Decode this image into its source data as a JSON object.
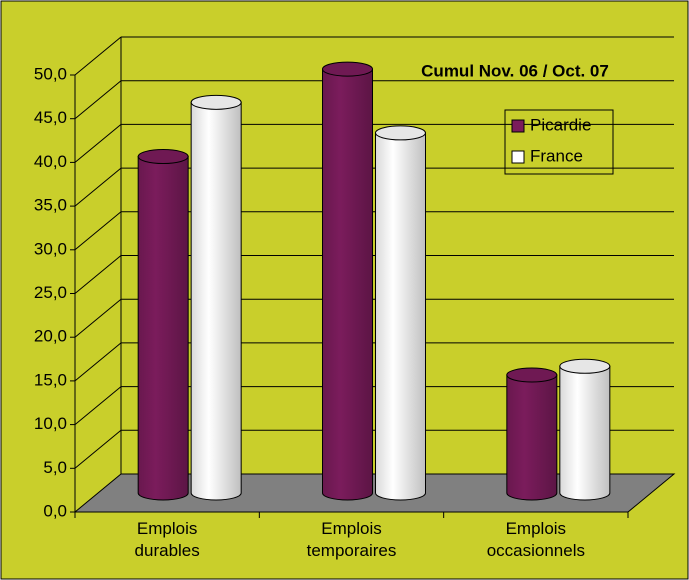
{
  "chart_data": {
    "type": "bar3d",
    "title": "Cumul Nov. 06 / Oct. 07",
    "categories": [
      "Emplois durables",
      "Emplois temporaires",
      "Emplois occasionnels"
    ],
    "series": [
      {
        "name": "Picardie",
        "color": "#7b1c5c",
        "values": [
          38.5,
          48.5,
          13.5
        ]
      },
      {
        "name": "France",
        "color": "#ffffff",
        "values": [
          44.7,
          41.2,
          14.5
        ]
      }
    ],
    "ylim": [
      0,
      50
    ],
    "yticks": [
      {
        "value": 0,
        "label": "0,0"
      },
      {
        "value": 5,
        "label": "5,0"
      },
      {
        "value": 10,
        "label": "10,0"
      },
      {
        "value": 15,
        "label": "15,0"
      },
      {
        "value": 20,
        "label": "20,0"
      },
      {
        "value": 25,
        "label": "25,0"
      },
      {
        "value": 30,
        "label": "30,0"
      },
      {
        "value": 35,
        "label": "35,0"
      },
      {
        "value": 40,
        "label": "40,0"
      },
      {
        "value": 45,
        "label": "45,0"
      },
      {
        "value": 50,
        "label": "50,0"
      }
    ],
    "grid": true,
    "legend": "top-right"
  }
}
